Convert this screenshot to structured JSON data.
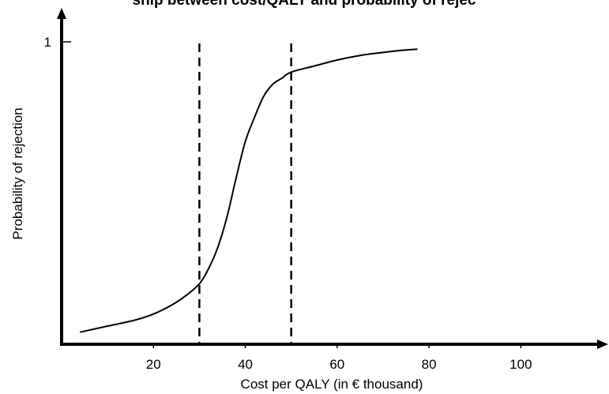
{
  "chart_data": {
    "type": "line",
    "title": "ship between cost/QALY and probability of rejec",
    "xlabel": "Cost per QALY (in € thousand)",
    "ylabel": "Probability of rejection",
    "xlim": [
      0,
      118
    ],
    "ylim": [
      0,
      1.07
    ],
    "x_ticks": [
      {
        "value": 20,
        "label": "20"
      },
      {
        "value": 40,
        "label": "40"
      },
      {
        "value": 60,
        "label": "60"
      },
      {
        "value": 80,
        "label": "80"
      },
      {
        "value": 100,
        "label": "100"
      }
    ],
    "y_ticks": [
      {
        "value": 1,
        "label": "1"
      }
    ],
    "grid": false,
    "legend": "none",
    "series": [
      {
        "style": "solid",
        "color": "#000000",
        "x": [
          4,
          10,
          16,
          20,
          24,
          27,
          30,
          32,
          34,
          36,
          38,
          40,
          42,
          44,
          46,
          48,
          50,
          55,
          60,
          65,
          70,
          74,
          77.5
        ],
        "y": [
          0.04,
          0.06,
          0.08,
          0.1,
          0.13,
          0.16,
          0.2,
          0.25,
          0.32,
          0.42,
          0.55,
          0.67,
          0.75,
          0.82,
          0.86,
          0.88,
          0.9,
          0.92,
          0.94,
          0.955,
          0.965,
          0.972,
          0.976
        ]
      }
    ],
    "vertical_lines": [
      {
        "x": 30,
        "style": "dashed",
        "color": "#000000"
      },
      {
        "x": 50,
        "style": "dashed",
        "color": "#000000"
      }
    ]
  }
}
